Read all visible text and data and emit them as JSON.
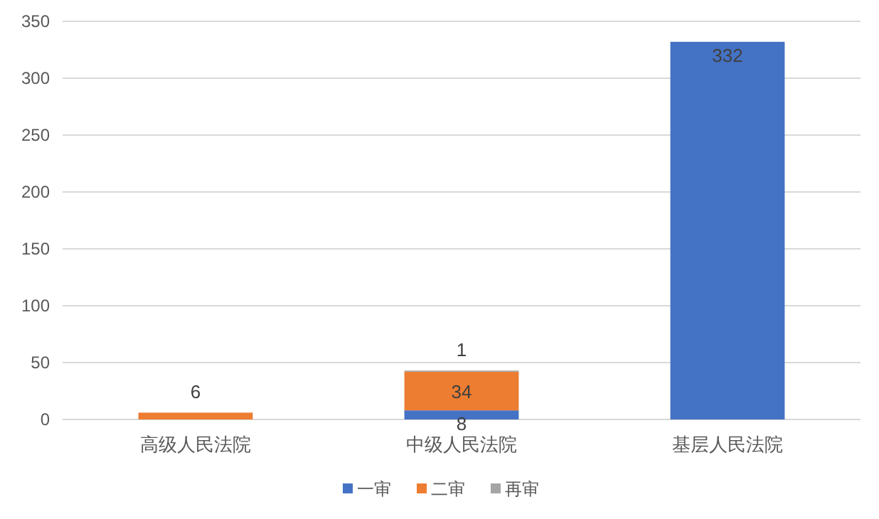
{
  "chart_data": {
    "type": "bar",
    "stacked": true,
    "categories": [
      "高级人民法院",
      "中级人民法院",
      "基层人民法院"
    ],
    "series": [
      {
        "name": "一审",
        "color": "#4472c4",
        "values": [
          null,
          8,
          332
        ]
      },
      {
        "name": "二审",
        "color": "#ed7d31",
        "values": [
          6,
          34,
          null
        ]
      },
      {
        "name": "再审",
        "color": "#a5a5a5",
        "values": [
          null,
          1,
          null
        ]
      }
    ],
    "ylim": [
      0,
      350
    ],
    "yticks": [
      0,
      50,
      100,
      150,
      200,
      250,
      300,
      350
    ],
    "grid": "y",
    "legend": "bottom",
    "data_labels": true
  }
}
